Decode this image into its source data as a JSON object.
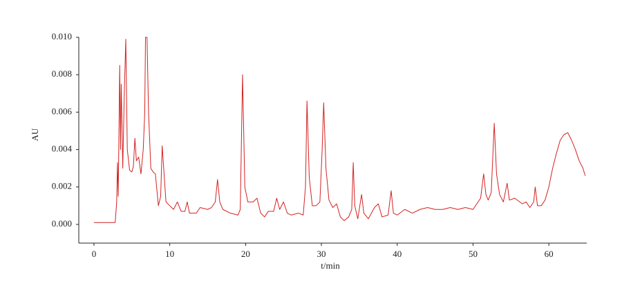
{
  "chart_data": {
    "type": "line",
    "xlabel": "t/min",
    "ylabel": "AU",
    "color": "#d42020",
    "xlim": [
      -2,
      65
    ],
    "ylim": [
      -0.001,
      0.01
    ],
    "xticks": [
      0,
      10,
      20,
      30,
      40,
      50,
      60
    ],
    "yticks": [
      {
        "value": 0,
        "label": "0.000"
      },
      {
        "value": 0.002,
        "label": "0.002"
      },
      {
        "value": 0.004,
        "label": "0.004"
      },
      {
        "value": 0.006,
        "label": "0.006"
      },
      {
        "value": 0.008,
        "label": "0.008"
      },
      {
        "value": 0.01,
        "label": "0.010"
      }
    ],
    "x": [
      0,
      1,
      2,
      2.8,
      3.0,
      3.1,
      3.2,
      3.4,
      3.5,
      3.6,
      3.8,
      4.0,
      4.2,
      4.4,
      4.7,
      5.0,
      5.2,
      5.4,
      5.6,
      5.9,
      6.2,
      6.5,
      6.7,
      6.8,
      7.0,
      7.2,
      7.5,
      7.8,
      8.1,
      8.5,
      8.8,
      9.0,
      9.2,
      9.5,
      10,
      10.5,
      11,
      11.5,
      12,
      12.3,
      12.6,
      13.5,
      14,
      15,
      15.5,
      16,
      16.3,
      16.6,
      17,
      18,
      19,
      19.3,
      19.6,
      19.9,
      20.3,
      21,
      21.5,
      22,
      22.5,
      23,
      23.7,
      24.1,
      24.5,
      25,
      25.5,
      26,
      27,
      27.6,
      27.9,
      28.1,
      28.4,
      28.8,
      29.3,
      29.8,
      30.1,
      30.3,
      30.6,
      31,
      31.5,
      32,
      32.5,
      33,
      33.6,
      34,
      34.2,
      34.4,
      34.8,
      35.3,
      35.6,
      36.2,
      37,
      37.5,
      38,
      38.8,
      39.2,
      39.5,
      40,
      41,
      42,
      43,
      44,
      45,
      46,
      47,
      48,
      49,
      50,
      50.5,
      51,
      51.4,
      51.7,
      52,
      52.4,
      52.8,
      53.1,
      53.5,
      54,
      54.5,
      54.8,
      55.5,
      56.5,
      57,
      57.5,
      58,
      58.2,
      58.5,
      59,
      59.5,
      60,
      60.5,
      61,
      61.5,
      62,
      62.5,
      63,
      63.5,
      64,
      64.5,
      64.8
    ],
    "values": [
      0.0001,
      0.0001,
      0.0001,
      0.0001,
      0.0012,
      0.0033,
      0.0015,
      0.0085,
      0.004,
      0.0075,
      0.003,
      0.007,
      0.0099,
      0.004,
      0.0029,
      0.0028,
      0.0031,
      0.0046,
      0.0034,
      0.0036,
      0.0027,
      0.004,
      0.006,
      0.01,
      0.01,
      0.006,
      0.003,
      0.0028,
      0.0027,
      0.001,
      0.0015,
      0.0042,
      0.003,
      0.0012,
      0.001,
      0.0008,
      0.0012,
      0.0007,
      0.0007,
      0.0012,
      0.0006,
      0.0006,
      0.0009,
      0.0008,
      0.0009,
      0.0012,
      0.0024,
      0.0012,
      0.0008,
      0.0006,
      0.0005,
      0.0008,
      0.008,
      0.002,
      0.0012,
      0.0012,
      0.0014,
      0.0006,
      0.0004,
      0.0007,
      0.0007,
      0.0014,
      0.0008,
      0.0012,
      0.0006,
      0.0005,
      0.0006,
      0.0005,
      0.002,
      0.0066,
      0.0025,
      0.001,
      0.001,
      0.0012,
      0.004,
      0.0065,
      0.003,
      0.0013,
      0.0009,
      0.0011,
      0.0004,
      0.0002,
      0.0004,
      0.0008,
      0.0033,
      0.001,
      0.0003,
      0.0016,
      0.0006,
      0.0003,
      0.0009,
      0.0011,
      0.0004,
      0.0005,
      0.0018,
      0.0006,
      0.0005,
      0.0008,
      0.0006,
      0.0008,
      0.0009,
      0.0008,
      0.0008,
      0.0009,
      0.0008,
      0.0009,
      0.0008,
      0.0011,
      0.0014,
      0.0027,
      0.0016,
      0.0013,
      0.0017,
      0.0054,
      0.0027,
      0.0016,
      0.0012,
      0.0022,
      0.0013,
      0.0014,
      0.0011,
      0.0012,
      0.0009,
      0.0012,
      0.002,
      0.001,
      0.001,
      0.0013,
      0.002,
      0.003,
      0.0038,
      0.0045,
      0.0048,
      0.0049,
      0.0045,
      0.004,
      0.0034,
      0.003,
      0.0026
    ]
  }
}
